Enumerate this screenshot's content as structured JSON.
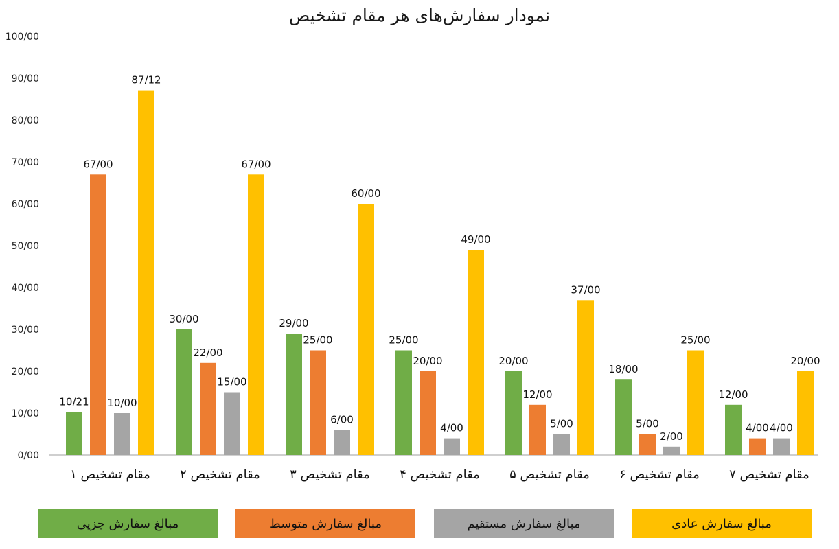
{
  "chart_data": {
    "type": "bar",
    "title": "نمودار سفارش‌های هر مقام تشخیص",
    "xlabel": "",
    "ylabel": "",
    "ylim": [
      0,
      100
    ],
    "yticks": [
      "0/00",
      "10/00",
      "20/00",
      "30/00",
      "40/00",
      "50/00",
      "60/00",
      "70/00",
      "80/00",
      "90/00",
      "100/00"
    ],
    "grid": false,
    "legend_position": "bottom",
    "categories": [
      "مقام تشخیص ۱",
      "مقام تشخیص ۲",
      "مقام تشخیص ۳",
      "مقام تشخیص ۴",
      "مقام تشخیص ۵",
      "مقام تشخیص ۶",
      "مقام تشخیص ۷"
    ],
    "series": [
      {
        "name": "مبالغ سفارش جزیی",
        "color": "#70ad47",
        "values": [
          10.21,
          30,
          29,
          25,
          20,
          18,
          12
        ],
        "labels": [
          "10/21",
          "30/00",
          "29/00",
          "25/00",
          "20/00",
          "18/00",
          "12/00"
        ]
      },
      {
        "name": "مبالغ سفارش متوسط",
        "color": "#ed7d31",
        "values": [
          67,
          22,
          25,
          20,
          12,
          5,
          4
        ],
        "labels": [
          "67/00",
          "22/00",
          "25/00",
          "20/00",
          "12/00",
          "5/00",
          "4/00"
        ]
      },
      {
        "name": "مبالغ سفارش مستقیم",
        "color": "#a5a5a5",
        "values": [
          10,
          15,
          6,
          4,
          5,
          2,
          4
        ],
        "labels": [
          "10/00",
          "15/00",
          "6/00",
          "4/00",
          "5/00",
          "2/00",
          "4/00"
        ]
      },
      {
        "name": "مبالغ سفارش عادی",
        "color": "#ffc000",
        "values": [
          87.12,
          67,
          60,
          49,
          37,
          25,
          20
        ],
        "labels": [
          "87/12",
          "67/00",
          "60/00",
          "49/00",
          "37/00",
          "25/00",
          "20/00"
        ]
      }
    ]
  }
}
